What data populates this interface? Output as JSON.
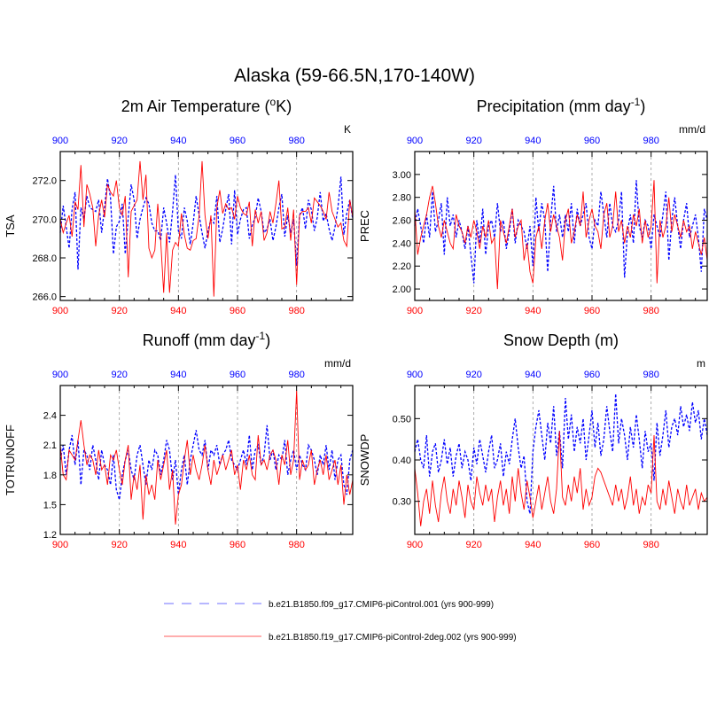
{
  "main_title": "Alaska (59-66.5N,170-140W)",
  "colors": {
    "control": "#0000ff",
    "test": "#ff0000",
    "frame": "#000000",
    "grid": "#999999"
  },
  "legend": [
    {
      "label": "b.e21.B1850.f09_g17.CMIP6-piControl.001 (yrs 900-999)",
      "color": "#6f6fff",
      "style": "dashed"
    },
    {
      "label": "b.e21.B1850.f19_g17.CMIP6-piControl-2deg.002 (yrs 900-999)",
      "color": "#ff5c5c",
      "style": "solid"
    }
  ],
  "chart_data": [
    {
      "id": "tsa",
      "type": "line",
      "title_text": "2m Air Temperature (",
      "title_sup": "o",
      "title_tail": "K)",
      "units": "K",
      "ylabel": "TSA",
      "xlim": [
        900,
        999
      ],
      "ylim": [
        265.8,
        273.5
      ],
      "xticks": [
        "900",
        "920",
        "940",
        "960",
        "980"
      ],
      "yticks": [
        {
          "v": 266,
          "l": "266.0"
        },
        {
          "v": 268,
          "l": "268.0"
        },
        {
          "v": 270,
          "l": "270.0"
        },
        {
          "v": 272,
          "l": "272.0"
        }
      ],
      "series": [
        {
          "name": "b.e21.B1850.f09_g17.CMIP6-piControl.001",
          "color": "#0000ff",
          "dash": "3,2",
          "x0": 900,
          "values": [
            269.3,
            270.7,
            269.6,
            268.5,
            270.5,
            271.4,
            267.4,
            270.6,
            270.0,
            271.2,
            270.6,
            270.5,
            270.4,
            271.0,
            269.3,
            270.6,
            272.1,
            271.1,
            268.2,
            269.6,
            269.9,
            270.8,
            268.2,
            270.1,
            271.8,
            271.0,
            269.0,
            270.0,
            270.6,
            271.1,
            270.8,
            269.8,
            269.4,
            269.4,
            268.9,
            270.6,
            269.8,
            268.8,
            270.4,
            272.3,
            269.4,
            269.0,
            270.6,
            269.9,
            268.7,
            269.8,
            271.2,
            270.2,
            269.3,
            268.5,
            269.4,
            270.0,
            269.8,
            271.2,
            268.8,
            269.5,
            270.5,
            271.3,
            268.7,
            271.5,
            269.2,
            270.0,
            270.5,
            270.6,
            269.0,
            269.7,
            270.1,
            271.1,
            270.4,
            269.3,
            269.5,
            270.0,
            268.9,
            269.6,
            270.6,
            271.3,
            269.1,
            270.2,
            269.3,
            270.0,
            267.6,
            270.2,
            270.6,
            269.5,
            271.0,
            270.5,
            269.4,
            270.1,
            271.4,
            269.9,
            270.3,
            269.5,
            268.9,
            269.6,
            270.6,
            272.2,
            269.2,
            270.3,
            271.0,
            270.0
          ]
        },
        {
          "name": "b.e21.B1850.f19_g17.CMIP6-piControl-2deg.002",
          "color": "#ff0000",
          "dash": "",
          "x0": 900,
          "values": [
            270.0,
            269.3,
            269.8,
            270.2,
            269.1,
            270.9,
            270.5,
            272.8,
            269.6,
            271.8,
            271.3,
            270.6,
            268.6,
            270.2,
            271.0,
            270.1,
            271.8,
            271.4,
            271.2,
            272.0,
            270.6,
            270.2,
            271.2,
            267.0,
            270.4,
            270.7,
            271.0,
            273.0,
            271.0,
            272.3,
            268.5,
            268.0,
            268.4,
            270.8,
            268.9,
            266.2,
            269.3,
            266.2,
            268.4,
            268.8,
            268.6,
            270.3,
            269.2,
            268.5,
            268.4,
            268.9,
            269.0,
            270.2,
            273.0,
            270.2,
            269.0,
            270.2,
            266.0,
            270.6,
            271.5,
            270.3,
            270.8,
            270.5,
            270.6,
            270.0,
            271.2,
            270.6,
            270.3,
            270.2,
            270.9,
            268.6,
            270.5,
            269.8,
            270.4,
            268.9,
            269.3,
            270.4,
            269.8,
            270.8,
            272.0,
            269.5,
            269.6,
            270.6,
            268.9,
            270.5,
            266.6,
            270.2,
            270.4,
            270.4,
            270.6,
            269.8,
            271.1,
            270.9,
            270.7,
            270.4,
            270.0,
            271.4,
            270.4,
            270.0,
            269.6,
            269.8,
            268.9,
            268.6,
            271.0,
            270.1
          ]
        }
      ]
    },
    {
      "id": "prec",
      "type": "line",
      "title_text": "Precipitation (mm day",
      "title_sup": "-1",
      "title_tail": ")",
      "units": "mm/d",
      "ylabel": "PREC",
      "xlim": [
        900,
        999
      ],
      "ylim": [
        1.9,
        3.2
      ],
      "xticks": [
        "900",
        "920",
        "940",
        "960",
        "980"
      ],
      "yticks": [
        {
          "v": 2.0,
          "l": "2.00"
        },
        {
          "v": 2.2,
          "l": "2.20"
        },
        {
          "v": 2.4,
          "l": "2.40"
        },
        {
          "v": 2.6,
          "l": "2.60"
        },
        {
          "v": 2.8,
          "l": "2.80"
        },
        {
          "v": 3.0,
          "l": "3.00"
        }
      ],
      "series": [
        {
          "name": "b.e21.B1850.f09_g17.CMIP6-piControl.001",
          "color": "#0000ff",
          "dash": "3,2",
          "x0": 900,
          "values": [
            2.55,
            2.7,
            2.55,
            2.4,
            2.65,
            2.45,
            2.85,
            2.5,
            2.6,
            2.75,
            2.3,
            2.8,
            2.55,
            2.65,
            2.45,
            2.6,
            2.5,
            2.35,
            2.55,
            2.3,
            2.05,
            2.6,
            2.4,
            2.7,
            2.3,
            2.55,
            2.6,
            2.45,
            2.75,
            2.5,
            2.6,
            2.35,
            2.5,
            2.7,
            2.4,
            2.6,
            2.55,
            2.5,
            2.35,
            2.55,
            2.2,
            2.8,
            2.5,
            2.75,
            2.6,
            2.15,
            2.6,
            2.9,
            2.5,
            2.65,
            2.45,
            2.65,
            2.5,
            2.75,
            2.4,
            2.7,
            2.55,
            2.65,
            2.75,
            2.45,
            2.35,
            2.6,
            2.55,
            2.85,
            2.65,
            2.45,
            2.75,
            2.55,
            2.5,
            2.6,
            2.85,
            2.1,
            2.5,
            2.65,
            2.4,
            2.95,
            2.55,
            2.45,
            2.6,
            2.55,
            2.35,
            2.65,
            2.55,
            2.45,
            2.65,
            2.85,
            2.25,
            2.6,
            2.8,
            2.55,
            2.35,
            2.6,
            2.75,
            2.45,
            2.55,
            2.65,
            2.45,
            2.15,
            2.7,
            2.6
          ]
        },
        {
          "name": "b.e21.B1850.f19_g17.CMIP6-piControl-2deg.002",
          "color": "#ff0000",
          "dash": "",
          "x0": 900,
          "values": [
            2.7,
            2.3,
            2.45,
            2.55,
            2.65,
            2.8,
            2.9,
            2.75,
            2.55,
            2.45,
            2.6,
            2.5,
            2.4,
            2.35,
            2.65,
            2.55,
            2.5,
            2.4,
            2.55,
            2.45,
            2.6,
            2.5,
            2.35,
            2.55,
            2.45,
            2.6,
            2.4,
            2.45,
            2.0,
            2.6,
            2.5,
            2.4,
            2.55,
            2.7,
            2.45,
            2.55,
            2.6,
            2.25,
            2.4,
            2.15,
            2.05,
            2.45,
            2.55,
            2.35,
            2.6,
            2.75,
            2.5,
            2.65,
            2.55,
            2.45,
            2.25,
            2.6,
            2.7,
            2.4,
            2.5,
            2.65,
            2.55,
            2.85,
            2.45,
            2.6,
            2.7,
            2.55,
            2.5,
            2.35,
            2.65,
            2.75,
            2.45,
            2.55,
            2.85,
            2.5,
            2.6,
            2.4,
            2.55,
            2.45,
            2.65,
            2.55,
            2.7,
            2.4,
            2.6,
            2.45,
            2.55,
            2.95,
            2.05,
            2.6,
            2.45,
            2.55,
            2.8,
            2.5,
            2.65,
            2.55,
            2.45,
            2.6,
            2.5,
            2.55,
            2.35,
            2.5,
            2.4,
            2.3,
            2.45,
            2.25
          ]
        }
      ]
    },
    {
      "id": "runoff",
      "type": "line",
      "title_text": "Runoff (mm day",
      "title_sup": "-1",
      "title_tail": ")",
      "units": "mm/d",
      "ylabel": "TOTRUNOFF",
      "xlim": [
        900,
        999
      ],
      "ylim": [
        1.2,
        2.7
      ],
      "xticks": [
        "900",
        "920",
        "940",
        "960",
        "980"
      ],
      "yticks": [
        {
          "v": 1.2,
          "l": "1.2"
        },
        {
          "v": 1.5,
          "l": "1.5"
        },
        {
          "v": 1.8,
          "l": "1.8"
        },
        {
          "v": 2.1,
          "l": "2.1"
        },
        {
          "v": 2.4,
          "l": "2.4"
        }
      ],
      "series": [
        {
          "name": "b.e21.B1850.f09_g17.CMIP6-piControl.001",
          "color": "#0000ff",
          "dash": "3,2",
          "x0": 900,
          "values": [
            1.95,
            2.1,
            1.8,
            2.05,
            2.2,
            1.9,
            2.15,
            1.7,
            2.05,
            2.0,
            1.85,
            2.1,
            1.95,
            1.75,
            2.05,
            1.9,
            1.85,
            1.7,
            2.0,
            1.65,
            1.55,
            1.8,
            1.95,
            2.05,
            1.85,
            1.75,
            2.0,
            2.1,
            1.9,
            1.7,
            1.95,
            1.85,
            2.05,
            2.0,
            1.8,
            1.95,
            2.15,
            2.05,
            1.75,
            1.95,
            1.6,
            1.85,
            2.0,
            1.7,
            1.95,
            2.1,
            2.25,
            2.05,
            2.0,
            2.15,
            1.85,
            2.05,
            2.0,
            2.1,
            1.9,
            2.0,
            2.05,
            2.15,
            1.95,
            1.9,
            1.85,
            1.95,
            2.05,
            1.9,
            2.2,
            1.85,
            2.05,
            2.1,
            1.9,
            2.0,
            2.3,
            1.95,
            2.05,
            1.85,
            2.0,
            1.95,
            2.15,
            1.8,
            1.95,
            2.05,
            1.85,
            2.0,
            1.9,
            1.85,
            2.1,
            2.05,
            1.95,
            1.8,
            2.0,
            1.9,
            2.1,
            1.85,
            2.05,
            1.75,
            1.95,
            2.0,
            1.7,
            1.6,
            1.95,
            2.05
          ]
        },
        {
          "name": "b.e21.B1850.f19_g17.CMIP6-piControl-2deg.002",
          "color": "#ff0000",
          "dash": "",
          "x0": 900,
          "values": [
            2.1,
            1.8,
            1.75,
            2.05,
            2.0,
            1.95,
            2.15,
            2.35,
            2.1,
            1.9,
            2.0,
            1.95,
            1.8,
            2.05,
            1.85,
            1.9,
            1.7,
            2.0,
            1.95,
            2.05,
            1.85,
            1.7,
            1.95,
            2.1,
            1.55,
            1.8,
            1.65,
            1.9,
            1.35,
            1.8,
            1.6,
            1.7,
            1.55,
            1.95,
            1.75,
            1.9,
            2.05,
            1.65,
            1.85,
            1.3,
            1.6,
            1.7,
            1.95,
            2.15,
            1.8,
            2.0,
            1.85,
            1.75,
            1.9,
            2.1,
            1.85,
            1.7,
            1.95,
            1.8,
            1.9,
            2.0,
            1.85,
            1.95,
            2.05,
            1.8,
            1.9,
            1.65,
            1.95,
            1.85,
            2.0,
            1.8,
            1.75,
            2.2,
            1.9,
            1.95,
            1.85,
            2.0,
            2.05,
            1.95,
            1.7,
            2.0,
            1.9,
            2.15,
            1.8,
            1.95,
            2.65,
            1.75,
            1.95,
            1.85,
            1.9,
            2.05,
            1.7,
            1.85,
            1.95,
            1.8,
            2.0,
            1.75,
            1.85,
            1.95,
            1.7,
            1.9,
            1.5,
            1.8,
            1.6,
            1.75
          ]
        }
      ]
    },
    {
      "id": "snowdp",
      "type": "line",
      "title_text": "Snow Depth (m)",
      "title_sup": "",
      "title_tail": "",
      "units": "m",
      "ylabel": "SNOWDP",
      "xlim": [
        900,
        999
      ],
      "ylim": [
        0.22,
        0.58
      ],
      "xticks": [
        "900",
        "920",
        "940",
        "960",
        "980"
      ],
      "yticks": [
        {
          "v": 0.3,
          "l": "0.30"
        },
        {
          "v": 0.4,
          "l": "0.40"
        },
        {
          "v": 0.5,
          "l": "0.50"
        }
      ],
      "series": [
        {
          "name": "b.e21.B1850.f09_g17.CMIP6-piControl.001",
          "color": "#0000ff",
          "dash": "3,2",
          "x0": 900,
          "values": [
            0.42,
            0.45,
            0.4,
            0.38,
            0.46,
            0.36,
            0.42,
            0.44,
            0.37,
            0.4,
            0.45,
            0.39,
            0.43,
            0.36,
            0.41,
            0.44,
            0.38,
            0.42,
            0.4,
            0.35,
            0.43,
            0.39,
            0.45,
            0.41,
            0.37,
            0.42,
            0.46,
            0.38,
            0.4,
            0.44,
            0.36,
            0.42,
            0.39,
            0.45,
            0.5,
            0.43,
            0.38,
            0.41,
            0.3,
            0.27,
            0.42,
            0.48,
            0.52,
            0.46,
            0.4,
            0.49,
            0.44,
            0.53,
            0.41,
            0.47,
            0.38,
            0.55,
            0.45,
            0.51,
            0.42,
            0.48,
            0.44,
            0.5,
            0.4,
            0.46,
            0.52,
            0.43,
            0.49,
            0.41,
            0.45,
            0.53,
            0.47,
            0.42,
            0.56,
            0.44,
            0.5,
            0.46,
            0.4,
            0.48,
            0.43,
            0.51,
            0.45,
            0.38,
            0.47,
            0.42,
            0.44,
            0.35,
            0.49,
            0.41,
            0.46,
            0.52,
            0.43,
            0.48,
            0.5,
            0.46,
            0.53,
            0.48,
            0.51,
            0.47,
            0.54,
            0.49,
            0.52,
            0.45,
            0.5,
            0.46
          ]
        },
        {
          "name": "b.e21.B1850.f19_g17.CMIP6-piControl-2deg.002",
          "color": "#ff0000",
          "dash": "",
          "x0": 900,
          "values": [
            0.38,
            0.32,
            0.24,
            0.3,
            0.33,
            0.27,
            0.35,
            0.29,
            0.25,
            0.32,
            0.36,
            0.3,
            0.27,
            0.33,
            0.29,
            0.35,
            0.31,
            0.26,
            0.34,
            0.3,
            0.28,
            0.36,
            0.32,
            0.29,
            0.34,
            0.3,
            0.33,
            0.25,
            0.31,
            0.35,
            0.29,
            0.33,
            0.27,
            0.36,
            0.3,
            0.38,
            0.32,
            0.28,
            0.35,
            0.31,
            0.26,
            0.3,
            0.34,
            0.28,
            0.32,
            0.36,
            0.3,
            0.27,
            0.33,
            0.47,
            0.31,
            0.29,
            0.34,
            0.3,
            0.36,
            0.32,
            0.38,
            0.28,
            0.33,
            0.29,
            0.31,
            0.36,
            0.38,
            0.37,
            0.35,
            0.33,
            0.31,
            0.29,
            0.34,
            0.3,
            0.33,
            0.28,
            0.31,
            0.36,
            0.29,
            0.33,
            0.27,
            0.31,
            0.29,
            0.34,
            0.32,
            0.46,
            0.3,
            0.28,
            0.33,
            0.29,
            0.35,
            0.31,
            0.27,
            0.33,
            0.3,
            0.28,
            0.34,
            0.29,
            0.31,
            0.33,
            0.28,
            0.32,
            0.3,
            0.31
          ]
        }
      ]
    }
  ]
}
